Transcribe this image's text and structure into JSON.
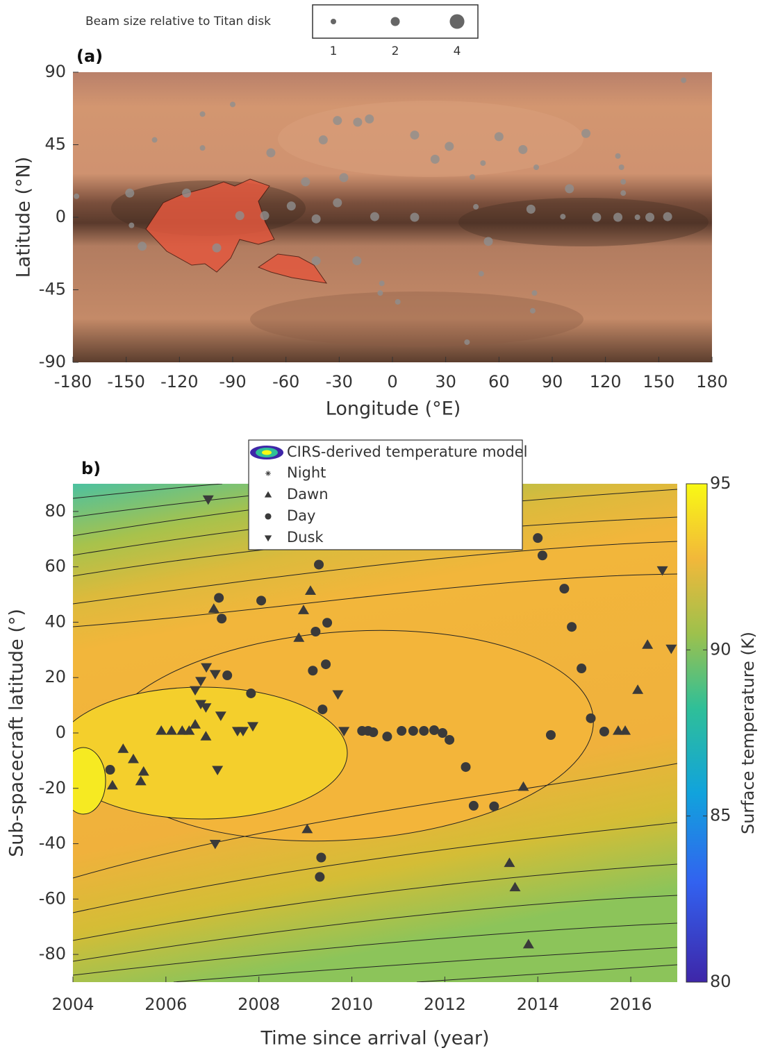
{
  "chart_data": [
    {
      "type": "scatter",
      "title": "(a)",
      "x_label": "Longitude (°E)",
      "y_label": "Latitude (°N)",
      "xlim": [
        -180,
        180
      ],
      "xticks": [
        -180,
        -150,
        -120,
        -90,
        -60,
        -30,
        0,
        30,
        60,
        90,
        120,
        150,
        180
      ],
      "ylim": [
        -90,
        90
      ],
      "yticks": [
        -90,
        -45,
        0,
        45,
        90
      ],
      "size_legend": {
        "title": "Beam size relative to Titan disk",
        "sizes": [
          1,
          2,
          4
        ]
      },
      "color": "#8f8f8f",
      "x": [
        -107,
        -90,
        -134,
        -107,
        -68.5,
        -31,
        -19.6,
        -13,
        -39,
        12.5,
        24,
        32,
        60,
        73.5,
        81,
        109,
        127,
        129,
        130,
        130,
        164,
        -178,
        -148,
        -116,
        -49,
        -27.4,
        -57,
        -31,
        -72,
        -86,
        -43,
        -10,
        12.5,
        78,
        99.7,
        96,
        115,
        127,
        145,
        155,
        138,
        47,
        51,
        45,
        -141,
        -99,
        -43,
        -20,
        54,
        50,
        -6,
        -6.9,
        3,
        80,
        79,
        42,
        -147
      ],
      "values": [
        64,
        70,
        48,
        43,
        40,
        60,
        59,
        61,
        48,
        51,
        36,
        44,
        50,
        42,
        31,
        52,
        38,
        31,
        22,
        15,
        85,
        13,
        15,
        15,
        22,
        24.6,
        7,
        9,
        1,
        1,
        -1,
        0.4,
        0,
        5,
        17.7,
        0.4,
        0,
        0,
        0,
        0.4,
        0,
        6.5,
        33.6,
        25,
        -18,
        -19,
        -27,
        -27,
        -15,
        -35,
        -41,
        -47,
        -52.5,
        -47,
        -58,
        -77.5,
        -5
      ],
      "sizes": [
        1,
        1,
        1,
        1,
        2,
        2,
        2,
        2,
        2,
        2,
        2,
        2,
        2,
        2,
        1,
        2,
        1,
        1,
        1,
        1,
        1,
        1,
        2,
        2,
        2,
        2,
        2,
        2,
        2,
        2,
        2,
        2,
        2,
        2,
        2,
        1,
        2,
        2,
        2,
        2,
        1,
        1,
        1,
        1,
        2,
        2,
        2,
        2,
        2,
        1,
        1,
        1,
        1,
        1,
        1,
        1,
        1
      ]
    },
    {
      "type": "scatter",
      "title": "b)",
      "x_label": "Time since arrival (year)",
      "y_label": "Sub-spacecraft latitude (°)",
      "xlim": [
        2004,
        2017
      ],
      "xticks": [
        2004,
        2006,
        2008,
        2010,
        2012,
        2014,
        2016
      ],
      "ylim": [
        -90,
        90
      ],
      "yticks": [
        -80,
        -60,
        -40,
        -20,
        0,
        20,
        40,
        60,
        80
      ],
      "model_label": "CIRS-derived temperature model",
      "colorbar": {
        "label": "Surface temperature (K)",
        "clim": [
          80,
          95
        ],
        "ticks": [
          80,
          85,
          90,
          95
        ]
      },
      "series": [
        {
          "name": "Night",
          "marker": "asterisk",
          "color": "#3a3a3a",
          "x": [],
          "values": []
        },
        {
          "name": "Dawn",
          "marker": "triangle-up",
          "color": "#3a3a3a",
          "x": [
            2004.85,
            2005.08,
            2005.3,
            2005.52,
            2005.46,
            2005.9,
            2006.12,
            2006.35,
            2006.5,
            2006.63,
            2006.86,
            2007.03,
            2008.96,
            2009.11,
            2008.86,
            2009.04,
            2013.69,
            2013.39,
            2013.51,
            2013.8,
            2016.15,
            2016.36,
            2015.73,
            2015.88
          ],
          "values": [
            -19,
            -5.8,
            -9.5,
            -14,
            -17.5,
            0.75,
            0.75,
            0.75,
            0.75,
            3,
            -1.3,
            44.8,
            44.3,
            51.3,
            34.3,
            -34.8,
            -19.5,
            -47,
            -55.8,
            -76.4,
            15.5,
            31.8,
            0.75,
            0.75
          ]
        },
        {
          "name": "Day",
          "marker": "circle",
          "color": "#3a3a3a",
          "x": [
            2004.8,
            2007.14,
            2007.2,
            2007.32,
            2007.83,
            2008.05,
            2009.29,
            2009.22,
            2009.47,
            2009.16,
            2009.44,
            2009.37,
            2009.34,
            2009.31,
            2010.22,
            2010.35,
            2010.46,
            2010.76,
            2011.07,
            2011.32,
            2011.55,
            2011.77,
            2011.95,
            2012.1,
            2012.45,
            2012.62,
            2013.06,
            2014.0,
            2014.1,
            2014.57,
            2014.73,
            2014.94,
            2014.28,
            2015.14,
            2015.43
          ],
          "values": [
            -13.3,
            48.8,
            41.3,
            20.8,
            14.3,
            47.8,
            60.8,
            36.6,
            39.8,
            22.5,
            24.8,
            8.5,
            -45,
            -52,
            0.75,
            0.75,
            0.25,
            -1.3,
            0.75,
            0.75,
            0.75,
            1,
            0,
            -2.5,
            -12.3,
            -26.3,
            -26.5,
            70.4,
            64.1,
            52.1,
            38.3,
            23.3,
            -0.75,
            5.3,
            0.5
          ]
        },
        {
          "name": "Dusk",
          "marker": "triangle-down",
          "color": "#3a3a3a",
          "x": [
            2006.91,
            2006.87,
            2007.06,
            2006.75,
            2006.63,
            2006.75,
            2006.86,
            2007.18,
            2007.11,
            2007.06,
            2007.54,
            2007.66,
            2007.87,
            2009.7,
            2009.83,
            2016.68,
            2016.87
          ],
          "values": [
            84.4,
            23.8,
            21.3,
            18.8,
            15.5,
            10.5,
            9.3,
            6.3,
            -13.3,
            -40,
            0.75,
            0.75,
            2.5,
            14,
            0.75,
            58.8,
            30.5
          ]
        }
      ]
    }
  ]
}
